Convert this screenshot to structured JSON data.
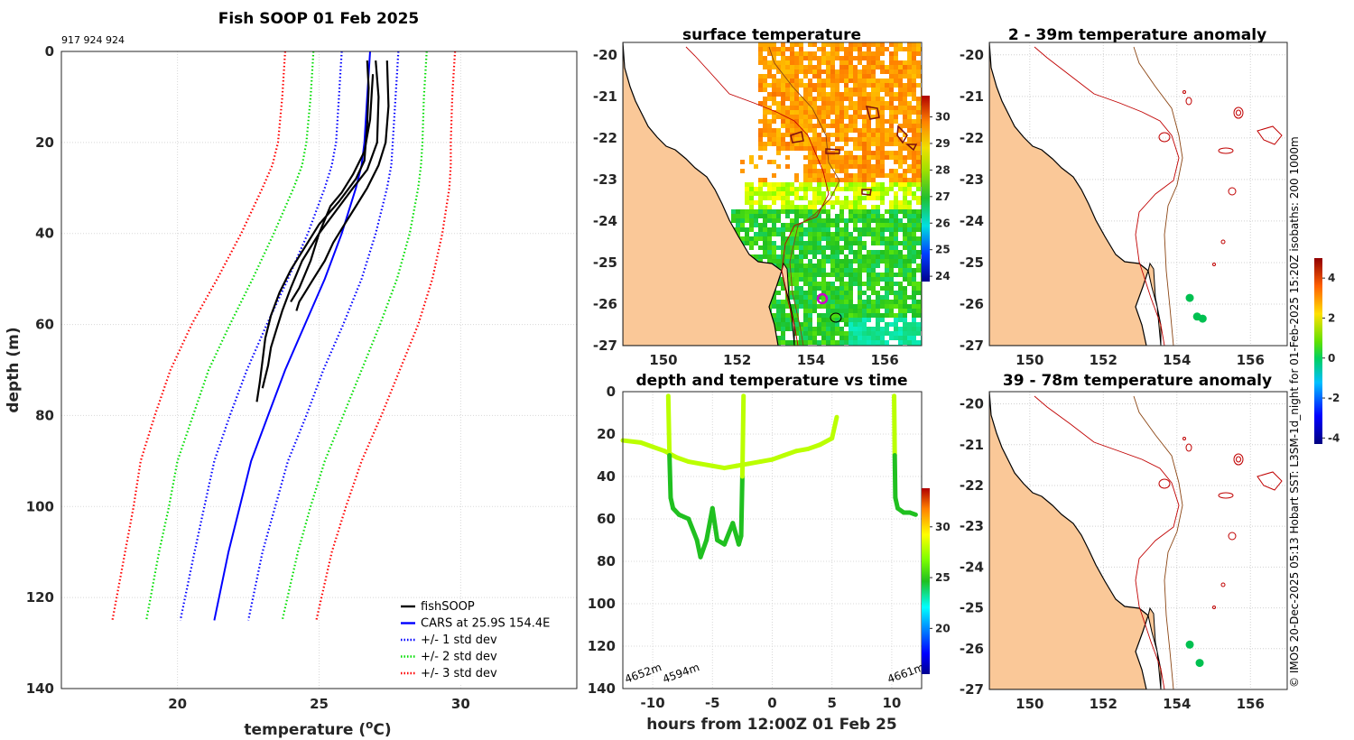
{
  "chart_data": [
    {
      "type": "line",
      "id": "profile",
      "title": "Fish SOOP 01 Feb 2025",
      "ids_text": "917 924 924",
      "xlabel": "temperature (°C)",
      "xlabel_main": "temperature (",
      "xlabel_sup": "o",
      "xlabel_end": "C)",
      "ylabel": "depth (m)",
      "xlim": [
        15.9,
        34.1
      ],
      "ylim": [
        0,
        140
      ],
      "y_reversed": true,
      "xticks": [
        20,
        25,
        30
      ],
      "yticks": [
        0,
        20,
        40,
        60,
        80,
        100,
        120,
        140
      ],
      "grid": true,
      "legend_position": "bottom-right",
      "legend": [
        {
          "label": "fishSOOP",
          "color": "#000000",
          "style": "solid"
        },
        {
          "label": "CARS at 25.9S 154.4E",
          "color": "#0000ff",
          "style": "solid"
        },
        {
          "label": "+/- 1 std dev",
          "color": "#0000ff",
          "style": "dotted"
        },
        {
          "label": "+/- 2 std dev",
          "color": "#00dd00",
          "style": "dotted"
        },
        {
          "label": "+/- 3 std dev",
          "color": "#ff0000",
          "style": "dotted"
        }
      ],
      "cars_depth": [
        0,
        5,
        10,
        20,
        25,
        30,
        40,
        50,
        60,
        70,
        80,
        90,
        100,
        110,
        125
      ],
      "cars_mean": [
        26.8,
        26.75,
        26.7,
        26.6,
        26.5,
        26.3,
        25.8,
        25.2,
        24.5,
        23.8,
        23.2,
        22.6,
        22.2,
        21.8,
        21.3
      ],
      "cars_sd1": [
        1.0,
        1.0,
        1.0,
        1.0,
        1.05,
        1.1,
        1.2,
        1.3,
        1.35,
        1.35,
        1.35,
        1.3,
        1.25,
        1.2,
        1.2
      ],
      "cars_sd2": [
        2.0,
        2.0,
        2.0,
        2.05,
        2.1,
        2.2,
        2.4,
        2.55,
        2.65,
        2.7,
        2.65,
        2.6,
        2.5,
        2.45,
        2.4
      ],
      "cars_sd3": [
        3.0,
        3.0,
        3.0,
        3.05,
        3.15,
        3.3,
        3.55,
        3.8,
        4.0,
        4.05,
        4.0,
        3.9,
        3.75,
        3.65,
        3.6
      ],
      "fish_profiles": [
        {
          "name": "profile-1",
          "temp": [
            26.7,
            26.75,
            26.7,
            26.6,
            26.3,
            25.7,
            25.0,
            24.5,
            24.0,
            23.6,
            23.3,
            23.1,
            23.0,
            22.9,
            22.8
          ],
          "depth": [
            2,
            8,
            16,
            24,
            28,
            33,
            38,
            43,
            48,
            53,
            58,
            63,
            68,
            73,
            77
          ]
        },
        {
          "name": "profile-2",
          "temp": [
            27.0,
            27.1,
            27.05,
            26.7,
            26.2,
            25.6,
            25.0,
            24.4,
            24.0,
            23.7,
            23.5,
            23.3,
            23.2,
            23.0
          ],
          "depth": [
            2,
            10,
            20,
            26,
            30,
            35,
            40,
            46,
            52,
            57,
            61,
            65,
            69,
            74
          ]
        },
        {
          "name": "profile-3",
          "temp": [
            27.4,
            27.45,
            27.35,
            27.1,
            26.7,
            26.3,
            25.9,
            25.5,
            25.2,
            24.8,
            24.5,
            24.3,
            24.2
          ],
          "depth": [
            2,
            12,
            20,
            25,
            30,
            34,
            38,
            42,
            46,
            50,
            53,
            55,
            57
          ]
        },
        {
          "name": "profile-4",
          "temp": [
            26.9,
            26.8,
            26.6,
            26.2,
            25.8,
            25.4,
            25.2,
            25.0,
            24.7,
            24.3,
            24.0
          ],
          "depth": [
            5,
            15,
            22,
            27,
            31,
            34,
            37,
            40,
            46,
            52,
            55
          ]
        }
      ]
    },
    {
      "type": "heatmap",
      "id": "sst_map",
      "title": "surface temperature",
      "xticks": [
        150,
        152,
        154,
        156
      ],
      "yticks": [
        -20,
        -21,
        -22,
        -23,
        -24,
        -25,
        -26,
        -27
      ],
      "xlim": [
        148.9,
        157
      ],
      "ylim": [
        -27,
        -19.7
      ],
      "colorbar_ticks": [
        24,
        25,
        26,
        27,
        28,
        29,
        30
      ],
      "colorbar_range": [
        23.8,
        30.8
      ]
    },
    {
      "type": "scatter",
      "id": "depth_time",
      "title": "depth and temperature vs time",
      "xlabel": "hours from 12:00Z 01 Feb 25",
      "xticks": [
        -10,
        -5,
        0,
        5,
        10
      ],
      "yticks": [
        0,
        20,
        40,
        60,
        80,
        100,
        120,
        140
      ],
      "xlim": [
        -12.5,
        12.5
      ],
      "ylim": [
        0,
        140
      ],
      "y_reversed": true,
      "colorbar_ticks": [
        20,
        25,
        30
      ],
      "colorbar_range": [
        15.5,
        33.8
      ],
      "annotations": [
        "4652m",
        "4594m",
        "4661m"
      ],
      "series": [
        {
          "name": "track-a",
          "x": [
            -12.5,
            -11,
            -10,
            -9,
            -8,
            -7,
            -6,
            -5,
            -4,
            -3,
            -2,
            -1,
            0,
            1,
            2,
            3,
            4,
            5,
            5.4
          ],
          "y": [
            23,
            24,
            26,
            28,
            31,
            33,
            34,
            35,
            36,
            35,
            34,
            33,
            32,
            30,
            28,
            27,
            25,
            22,
            12
          ]
        },
        {
          "name": "track-b",
          "x": [
            -8.7,
            -8.6,
            -8.5,
            -8.3,
            -7.8,
            -7,
            -6.3,
            -6,
            -5.5,
            -5,
            -4.6,
            -4,
            -3.3,
            -2.8,
            -2.6,
            -2.5,
            -2.4
          ],
          "y": [
            2,
            30,
            50,
            55,
            58,
            60,
            70,
            78,
            70,
            55,
            70,
            72,
            62,
            72,
            68,
            40,
            2
          ]
        },
        {
          "name": "track-c",
          "x": [
            10.2,
            10.25,
            10.3,
            10.5,
            11,
            11.5,
            12
          ],
          "y": [
            2,
            30,
            50,
            55,
            57,
            57,
            58
          ]
        }
      ]
    },
    {
      "type": "scatter",
      "id": "anom_2_39",
      "title": "2 - 39m temperature anomaly",
      "xticks": [
        150,
        152,
        154,
        156
      ],
      "yticks": [
        -20,
        -21,
        -22,
        -23,
        -24,
        -25,
        -26,
        -27
      ],
      "xlim": [
        148.9,
        157
      ],
      "ylim": [
        -27,
        -19.7
      ],
      "points": [
        {
          "lon": 154.35,
          "lat": -25.85,
          "anom": 0.6
        },
        {
          "lon": 154.55,
          "lat": -26.3,
          "anom": 0.6
        },
        {
          "lon": 154.7,
          "lat": -26.35,
          "anom": 0.6
        }
      ]
    },
    {
      "type": "scatter",
      "id": "anom_39_78",
      "title": "39 - 78m temperature anomaly",
      "xticks": [
        150,
        152,
        154,
        156
      ],
      "yticks": [
        -20,
        -21,
        -22,
        -23,
        -24,
        -25,
        -26,
        -27
      ],
      "xlim": [
        148.9,
        157
      ],
      "ylim": [
        -27,
        -19.7
      ],
      "colorbar_ticks": [
        4,
        2,
        0,
        -2,
        -4
      ],
      "colorbar_range": [
        -4.3,
        5
      ],
      "points": [
        {
          "lon": 154.35,
          "lat": -25.9,
          "anom": 0.6
        },
        {
          "lon": 154.62,
          "lat": -26.35,
          "anom": 0.6
        }
      ]
    }
  ],
  "side_note": "© IMOS 20-Dec-2025 05:13 Hobart SST: L3SM-1d_night for 01-Feb-2025 15:20Z isobaths: 200  1000m"
}
